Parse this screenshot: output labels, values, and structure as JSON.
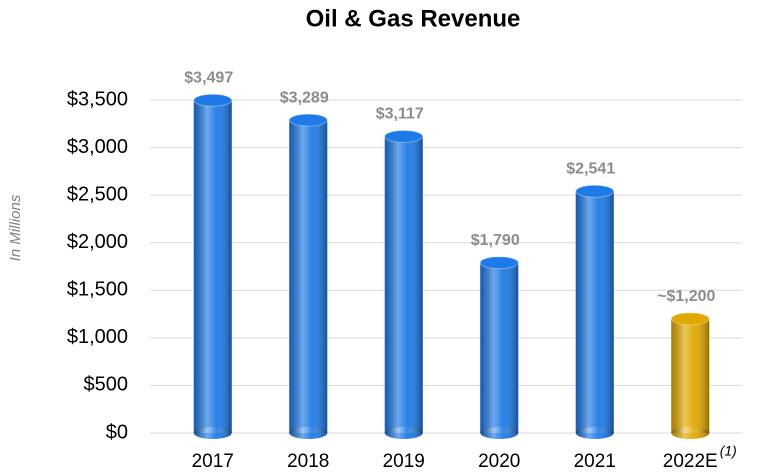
{
  "chart_data": {
    "type": "bar",
    "title": "Oil & Gas Revenue",
    "y_axis_label": "In Millions",
    "categories": [
      "2017",
      "2018",
      "2019",
      "2020",
      "2021",
      "2022E"
    ],
    "footnote_marker": "(1)",
    "values": [
      3497,
      3289,
      3117,
      1790,
      2541,
      1200
    ],
    "value_labels": [
      "$3,497",
      "$3,289",
      "$3,117",
      "$1,790",
      "$2,541",
      "~$1,200"
    ],
    "colors": [
      "#1e7ae6",
      "#1e7ae6",
      "#1e7ae6",
      "#1e7ae6",
      "#1e7ae6",
      "#e0a800"
    ],
    "ylim": [
      0,
      3500
    ],
    "yticks": [
      {
        "value": 0,
        "label": "$0"
      },
      {
        "value": 500,
        "label": "$500"
      },
      {
        "value": 1000,
        "label": "$1,000"
      },
      {
        "value": 1500,
        "label": "$1,500"
      },
      {
        "value": 2000,
        "label": "$2,000"
      },
      {
        "value": 2500,
        "label": "$2,500"
      },
      {
        "value": 3000,
        "label": "$3,000"
      },
      {
        "value": 3500,
        "label": "$3,500"
      }
    ],
    "grid": true
  }
}
